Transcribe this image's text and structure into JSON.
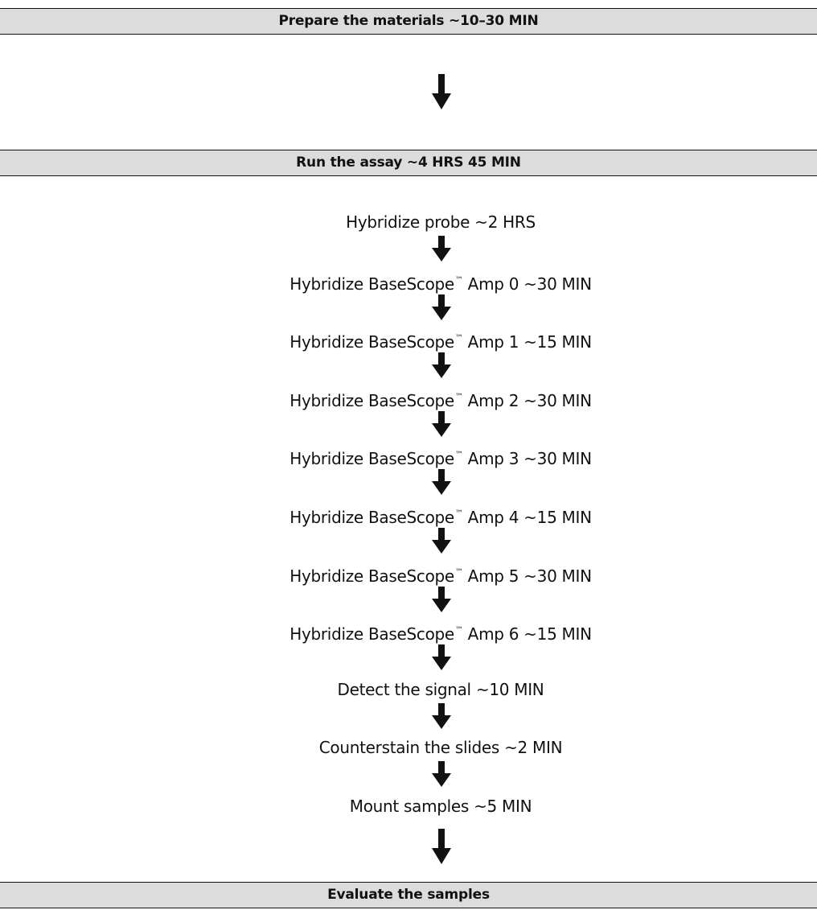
{
  "sections": {
    "prepare": "Prepare the materials ~10–30 MIN",
    "run": "Run the assay ~4 HRS 45 MIN",
    "evaluate": "Evaluate the samples"
  },
  "steps": [
    {
      "pre": "Hybridize probe ~2 HRS",
      "post": ""
    },
    {
      "pre": "Hybridize BaseScope",
      "post": " Amp 0 ~30 MIN"
    },
    {
      "pre": "Hybridize BaseScope",
      "post": " Amp 1 ~15 MIN"
    },
    {
      "pre": "Hybridize BaseScope",
      "post": " Amp 2 ~30 MIN"
    },
    {
      "pre": "Hybridize BaseScope",
      "post": " Amp 3 ~30 MIN"
    },
    {
      "pre": "Hybridize BaseScope",
      "post": " Amp 4 ~15 MIN"
    },
    {
      "pre": "Hybridize BaseScope",
      "post": " Amp 5 ~30 MIN"
    },
    {
      "pre": "Hybridize BaseScope",
      "post": " Amp 6 ~15 MIN"
    },
    {
      "pre": "Detect the signal ~10 MIN",
      "post": ""
    },
    {
      "pre": "Counterstain the slides ~2 MIN",
      "post": ""
    },
    {
      "pre": "Mount samples ~5 MIN",
      "post": ""
    }
  ],
  "trademark": "™",
  "colors": {
    "bar_fill": "#dcdcdc",
    "ink": "#111111"
  }
}
